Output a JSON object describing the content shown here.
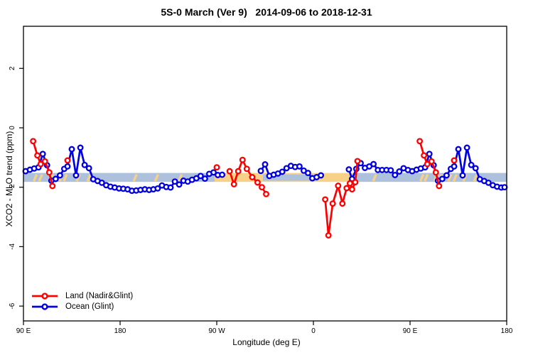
{
  "chart_data": {
    "type": "line",
    "title": "5S-0 March (Ver 9)   2014-09-06 to 2018-12-31",
    "xlabel": "Longitude (deg E)",
    "ylabel": "XCO2 - MLO trend (ppm)",
    "x_axis": {
      "note": "longitude wraps across dateline; plotted span is 450 deg",
      "range_plot_deg": [
        90,
        540
      ],
      "ticks_deg": [
        90,
        180,
        270,
        360,
        450,
        540
      ],
      "tick_labels": [
        "90 E",
        "180",
        "90 W",
        "0",
        "90 E",
        "180"
      ]
    },
    "y_axis": {
      "range": [
        -6.6,
        3.4
      ],
      "ticks": [
        2,
        0,
        -2,
        -4,
        -6
      ],
      "tick_labels": [
        "2",
        "0",
        "-2",
        "-4",
        "-6"
      ]
    },
    "bands": {
      "ocean_color": "#aec1dc",
      "land_color": "#f8d188",
      "value_top": -1.52,
      "value_bottom": -1.82,
      "land_solid_lon": [
        268,
        399
      ],
      "ocean_base_lon": [
        [
          90,
          268
        ],
        [
          399,
          540
        ]
      ],
      "ocean_overlay_lon": [
        313,
        364
      ],
      "ocean_overlay_values": [
        -1.57,
        -1.78
      ],
      "land_dash_lons": [
        101,
        106,
        116,
        125,
        129,
        141,
        151,
        194,
        214,
        236,
        417,
        461,
        465,
        474,
        478,
        487,
        492,
        501,
        511
      ]
    },
    "series": [
      {
        "name": "Land (Nadir&Glint)",
        "color": "#ff0000",
        "segments": [
          [
            [
              99,
              -0.45
            ],
            [
              103,
              -0.93
            ],
            [
              106,
              -1.22
            ],
            [
              110,
              -1.13
            ],
            [
              114,
              -1.5
            ],
            [
              117,
              -1.96
            ]
          ],
          [
            [
              131,
              -1.1
            ]
          ],
          [
            [
              270,
              -1.33
            ]
          ],
          [
            [
              282,
              -1.46
            ],
            [
              286,
              -1.9
            ],
            [
              290,
              -1.46
            ],
            [
              294,
              -1.08
            ],
            [
              298,
              -1.38
            ],
            [
              303,
              -1.66
            ],
            [
              308,
              -1.84
            ],
            [
              312,
              -2.0
            ],
            [
              316,
              -2.23
            ]
          ],
          [
            [
              371,
              -2.41
            ],
            [
              374,
              -3.62
            ],
            [
              378,
              -2.55
            ],
            [
              383,
              -1.95
            ],
            [
              387,
              -2.55
            ],
            [
              391,
              -2.03
            ],
            [
              394,
              -1.87
            ],
            [
              396,
              -2.07
            ],
            [
              399,
              -1.83
            ],
            [
              401,
              -1.12
            ]
          ],
          [
            [
              459,
              -0.45
            ],
            [
              463,
              -0.93
            ],
            [
              466,
              -1.22
            ],
            [
              470,
              -1.13
            ],
            [
              474,
              -1.5
            ],
            [
              477,
              -1.96
            ]
          ],
          [
            [
              491,
              -1.1
            ]
          ]
        ]
      },
      {
        "name": "Ocean (Glint)",
        "color": "#0000e0",
        "segments": [
          [
            [
              92,
              -1.46
            ],
            [
              96,
              -1.41
            ],
            [
              100,
              -1.37
            ],
            [
              104,
              -1.33
            ],
            [
              108,
              -0.88
            ],
            [
              112,
              -1.26
            ],
            [
              116,
              -1.78
            ],
            [
              120,
              -1.72
            ],
            [
              124,
              -1.6
            ],
            [
              128,
              -1.38
            ],
            [
              131,
              -1.3
            ],
            [
              135,
              -0.72
            ],
            [
              139,
              -1.6
            ],
            [
              143,
              -0.67
            ],
            [
              147,
              -1.25
            ],
            [
              151,
              -1.36
            ],
            [
              155,
              -1.73
            ],
            [
              159,
              -1.79
            ],
            [
              163,
              -1.85
            ],
            [
              167,
              -1.93
            ],
            [
              171,
              -1.98
            ],
            [
              175,
              -2.01
            ],
            [
              179,
              -2.04
            ],
            [
              183,
              -2.05
            ],
            [
              187,
              -2.07
            ],
            [
              191,
              -2.12
            ],
            [
              195,
              -2.11
            ],
            [
              199,
              -2.09
            ],
            [
              203,
              -2.07
            ],
            [
              207,
              -2.09
            ],
            [
              211,
              -2.07
            ],
            [
              215,
              -2.04
            ],
            [
              219,
              -1.94
            ],
            [
              223,
              -1.99
            ],
            [
              227,
              -2.01
            ],
            [
              231,
              -1.81
            ],
            [
              235,
              -1.91
            ],
            [
              239,
              -1.78
            ],
            [
              243,
              -1.81
            ],
            [
              247,
              -1.75
            ],
            [
              251,
              -1.7
            ],
            [
              255,
              -1.62
            ],
            [
              259,
              -1.71
            ],
            [
              263,
              -1.55
            ],
            [
              267,
              -1.5
            ],
            [
              271,
              -1.59
            ],
            [
              275,
              -1.58
            ]
          ],
          [
            [
              311,
              -1.45
            ],
            [
              315,
              -1.23
            ],
            [
              319,
              -1.62
            ],
            [
              323,
              -1.58
            ],
            [
              327,
              -1.54
            ],
            [
              331,
              -1.48
            ],
            [
              335,
              -1.36
            ],
            [
              339,
              -1.28
            ],
            [
              343,
              -1.32
            ],
            [
              347,
              -1.3
            ],
            [
              351,
              -1.44
            ],
            [
              355,
              -1.52
            ],
            [
              359,
              -1.7
            ],
            [
              363,
              -1.66
            ],
            [
              367,
              -1.6
            ]
          ],
          [
            [
              393,
              -1.4
            ],
            [
              396,
              -1.72
            ],
            [
              400,
              -1.38
            ],
            [
              404,
              -1.19
            ],
            [
              408,
              -1.35
            ],
            [
              412,
              -1.3
            ],
            [
              416,
              -1.22
            ],
            [
              420,
              -1.42
            ],
            [
              424,
              -1.42
            ],
            [
              428,
              -1.42
            ],
            [
              432,
              -1.43
            ],
            [
              436,
              -1.59
            ],
            [
              440,
              -1.47
            ],
            [
              444,
              -1.36
            ],
            [
              448,
              -1.42
            ],
            [
              452,
              -1.46
            ],
            [
              456,
              -1.41
            ],
            [
              460,
              -1.37
            ],
            [
              464,
              -1.33
            ],
            [
              468,
              -0.88
            ],
            [
              472,
              -1.26
            ],
            [
              476,
              -1.78
            ],
            [
              480,
              -1.72
            ],
            [
              484,
              -1.6
            ],
            [
              488,
              -1.38
            ],
            [
              491,
              -1.3
            ],
            [
              495,
              -0.72
            ],
            [
              499,
              -1.6
            ],
            [
              503,
              -0.67
            ],
            [
              507,
              -1.25
            ],
            [
              511,
              -1.36
            ],
            [
              515,
              -1.73
            ],
            [
              519,
              -1.79
            ],
            [
              523,
              -1.85
            ],
            [
              527,
              -1.93
            ],
            [
              531,
              -1.98
            ],
            [
              535,
              -2.01
            ],
            [
              538,
              -2.0
            ]
          ]
        ]
      }
    ],
    "legend_position": "bottom-left"
  }
}
